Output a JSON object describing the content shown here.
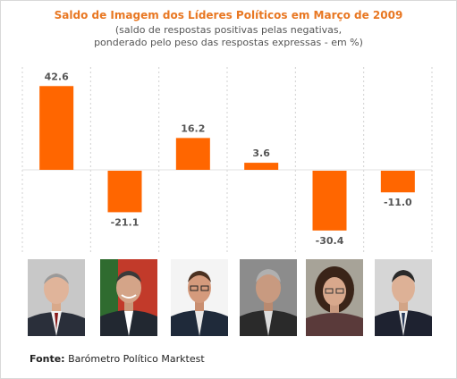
{
  "chart_data": {
    "type": "bar",
    "title": "Saldo de Imagem dos Líderes Políticos em Março de 2009",
    "subtitle_lines": [
      "(saldo de respostas positivas pelas negativas,",
      "ponderado pelo peso das respostas expressas - em %)"
    ],
    "categories": [
      "",
      "",
      "",
      "",
      "",
      ""
    ],
    "values": [
      42.6,
      -21.1,
      16.2,
      3.6,
      -30.4,
      -11.0
    ],
    "value_labels": [
      "42.6",
      "-21.1",
      "16.2",
      "3.6",
      "-30.4",
      "-11.0"
    ],
    "ylim": [
      -36,
      52
    ],
    "bar_color": "#ff6600",
    "grid": "vertical-dashed",
    "xlabel": "",
    "ylabel": ""
  },
  "source": {
    "label": "Fonte:",
    "text": "Barómetro Político Marktest"
  },
  "colors": {
    "title": "#e87722",
    "subtitle": "#555555",
    "bar": "#ff6600",
    "gridline": "#d0d0d0"
  }
}
